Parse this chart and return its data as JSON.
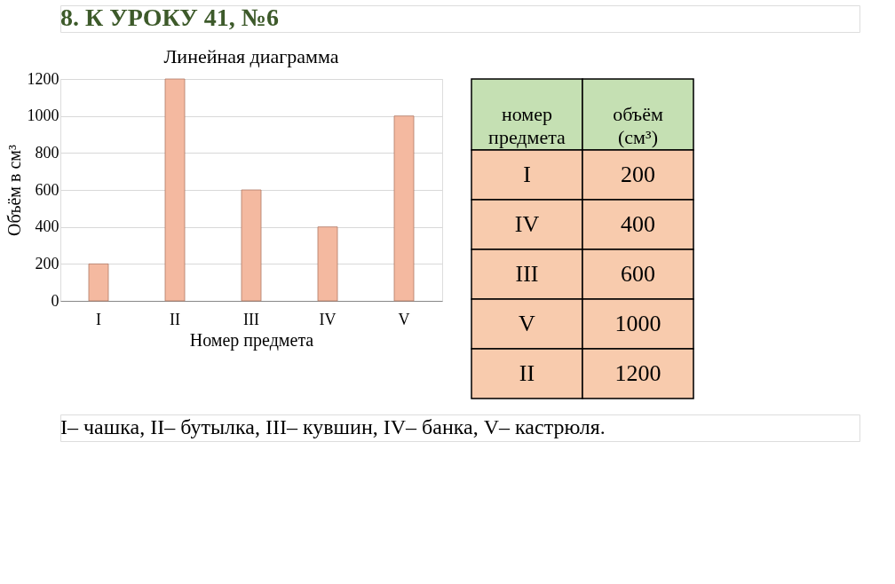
{
  "chart_data": [
    {
      "type": "bar",
      "title": "Линейная диаграмма",
      "xlabel": "Номер предмета",
      "ylabel": "Объём в см³",
      "categories": [
        "I",
        "II",
        "III",
        "IV",
        "V"
      ],
      "values": [
        200,
        1200,
        600,
        400,
        1000
      ],
      "color": "#f4b9a0",
      "ylim": [
        0,
        1200
      ],
      "yticks": [
        0,
        200,
        400,
        600,
        800,
        1000,
        1200
      ],
      "grid": "y",
      "annotations": [
        "8. К УРОКУ 41, №6",
        "I– чашка,  II– бутылка,  III– кувшин,  IV– банка,  V– кастрюля."
      ]
    },
    {
      "type": "other",
      "annotations": [
        "номер предмета",
        "объём (см³)"
      ],
      "categories": [
        "I",
        "IV",
        "III",
        "V",
        "II"
      ],
      "values": [
        200,
        400,
        600,
        1000,
        1200
      ],
      "data_labels": true,
      "colors": [
        "#f8cbad",
        "#f8cbad",
        "#f8cbad",
        "#f8cbad",
        "#f8cbad"
      ]
    }
  ]
}
